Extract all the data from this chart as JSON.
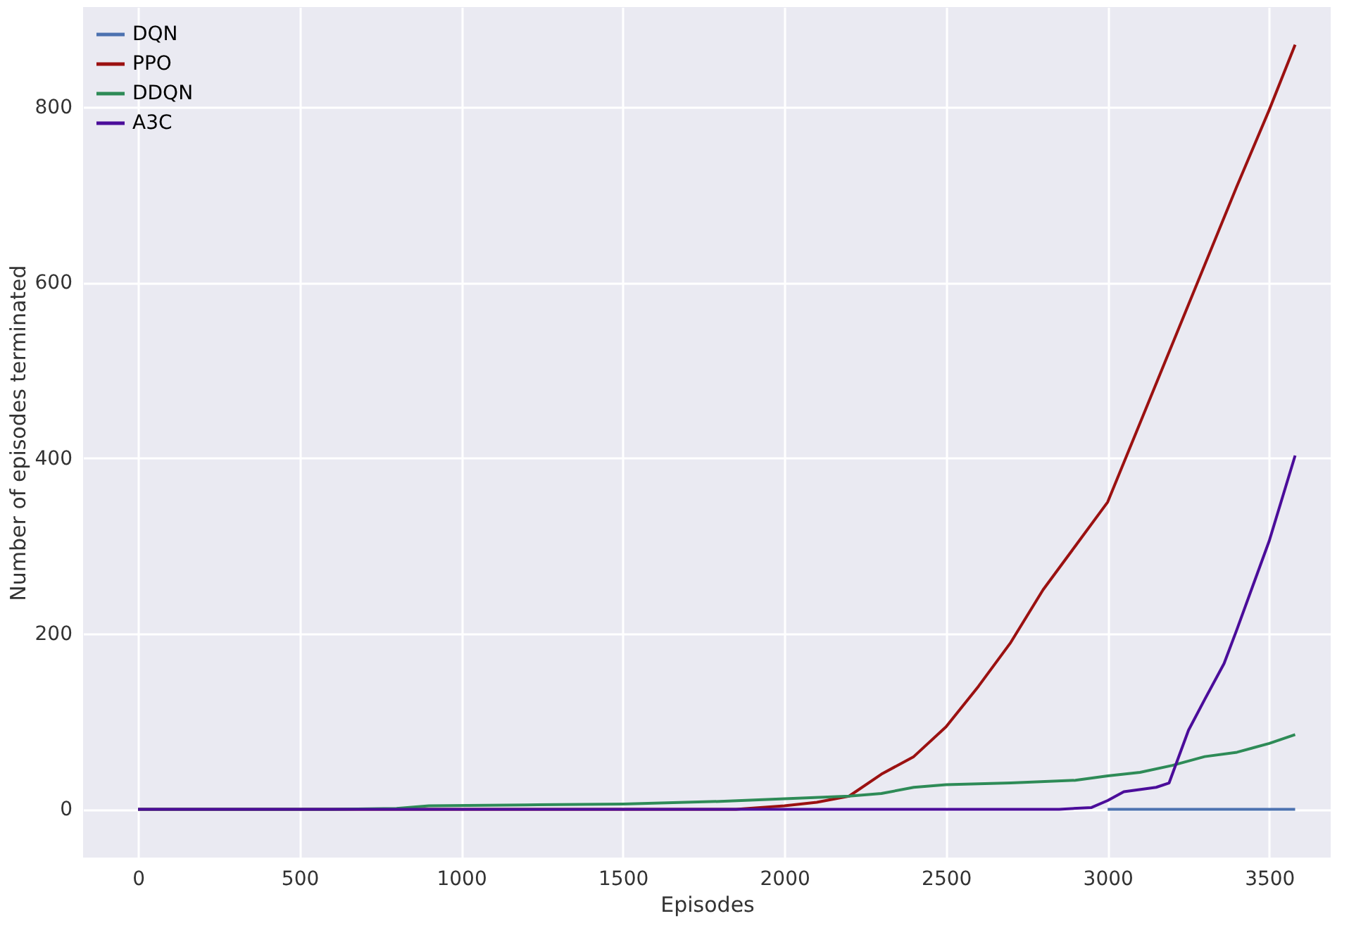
{
  "chart_data": {
    "type": "line",
    "xlabel": "Episodes",
    "ylabel": "Number of episodes terminated",
    "xlim": [
      -170,
      3690
    ],
    "ylim": [
      -55,
      914
    ],
    "xticks": [
      0,
      500,
      1000,
      1500,
      2000,
      2500,
      3000,
      3500
    ],
    "yticks": [
      0,
      200,
      400,
      600,
      800
    ],
    "grid": true,
    "legend": "top left",
    "line_style": "solid",
    "marker": "none",
    "series": [
      {
        "name": "DQN",
        "color": "#4c72b0",
        "x": [
          3000,
          3300,
          3580
        ],
        "values": [
          0,
          0,
          0
        ]
      },
      {
        "name": "PPO",
        "color": "#9b1111",
        "x": [
          0,
          1850,
          2000,
          2100,
          2200,
          2300,
          2400,
          2500,
          2600,
          2700,
          2800,
          2900,
          3000,
          3100,
          3200,
          3300,
          3400,
          3500,
          3580
        ],
        "values": [
          0,
          0,
          4,
          8,
          15,
          40,
          60,
          94,
          140,
          190,
          250,
          300,
          350,
          440,
          530,
          620,
          710,
          797,
          871
        ]
      },
      {
        "name": "DDQN",
        "color": "#2e8b57",
        "x": [
          0,
          600,
          800,
          900,
          1200,
          1500,
          1800,
          2000,
          2200,
          2300,
          2400,
          2500,
          2700,
          2900,
          3000,
          3100,
          3200,
          3300,
          3400,
          3500,
          3580
        ],
        "values": [
          0,
          0,
          1,
          4,
          5,
          6,
          9,
          12,
          15,
          18,
          25,
          28,
          30,
          33,
          38,
          42,
          50,
          60,
          65,
          75,
          85
        ]
      },
      {
        "name": "A3C",
        "color": "#4b0d9a",
        "x": [
          0,
          2850,
          2950,
          3000,
          3050,
          3150,
          3190,
          3250,
          3300,
          3360,
          3400,
          3500,
          3580
        ],
        "values": [
          0,
          0,
          2,
          10,
          20,
          25,
          30,
          90,
          125,
          166,
          205,
          306,
          403
        ]
      }
    ]
  }
}
